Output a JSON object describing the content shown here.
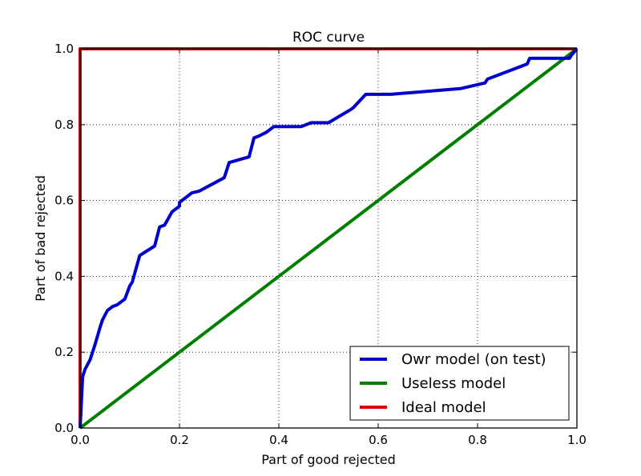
{
  "chart_data": {
    "type": "line",
    "title": "ROC curve",
    "xlabel": "Part of good rejected",
    "ylabel": "Part of bad rejected",
    "xlim": [
      0.0,
      1.0
    ],
    "ylim": [
      0.0,
      1.0
    ],
    "xticks": [
      "0.0",
      "0.2",
      "0.4",
      "0.6",
      "0.8",
      "1.0"
    ],
    "yticks": [
      "0.0",
      "0.2",
      "0.4",
      "0.6",
      "0.8",
      "1.0"
    ],
    "grid": true,
    "legend_position": "bottom-right",
    "series": [
      {
        "name": "Owr model (on test)",
        "color": "#0000cc",
        "x": [
          0.0,
          0.005,
          0.01,
          0.02,
          0.03,
          0.04,
          0.045,
          0.055,
          0.065,
          0.075,
          0.09,
          0.1,
          0.105,
          0.12,
          0.15,
          0.16,
          0.17,
          0.185,
          0.2,
          0.2,
          0.215,
          0.225,
          0.24,
          0.29,
          0.3,
          0.34,
          0.35,
          0.36,
          0.375,
          0.39,
          0.445,
          0.465,
          0.5,
          0.545,
          0.55,
          0.575,
          0.625,
          0.765,
          0.815,
          0.82,
          0.9,
          0.905,
          0.985,
          0.99,
          1.0
        ],
        "y": [
          0.0,
          0.135,
          0.155,
          0.18,
          0.22,
          0.265,
          0.285,
          0.31,
          0.32,
          0.325,
          0.34,
          0.375,
          0.385,
          0.455,
          0.48,
          0.53,
          0.535,
          0.57,
          0.585,
          0.595,
          0.61,
          0.62,
          0.625,
          0.66,
          0.7,
          0.715,
          0.765,
          0.77,
          0.78,
          0.795,
          0.795,
          0.805,
          0.805,
          0.84,
          0.845,
          0.88,
          0.88,
          0.895,
          0.91,
          0.92,
          0.96,
          0.975,
          0.975,
          0.985,
          1.0
        ]
      },
      {
        "name": "Useless model",
        "color": "#007f00",
        "x": [
          0.0,
          1.0
        ],
        "y": [
          0.0,
          1.0
        ]
      },
      {
        "name": "Ideal model",
        "color": "#dd0000",
        "x": [
          0.0,
          0.0,
          1.0
        ],
        "y": [
          0.0,
          1.0,
          1.0
        ]
      }
    ]
  }
}
